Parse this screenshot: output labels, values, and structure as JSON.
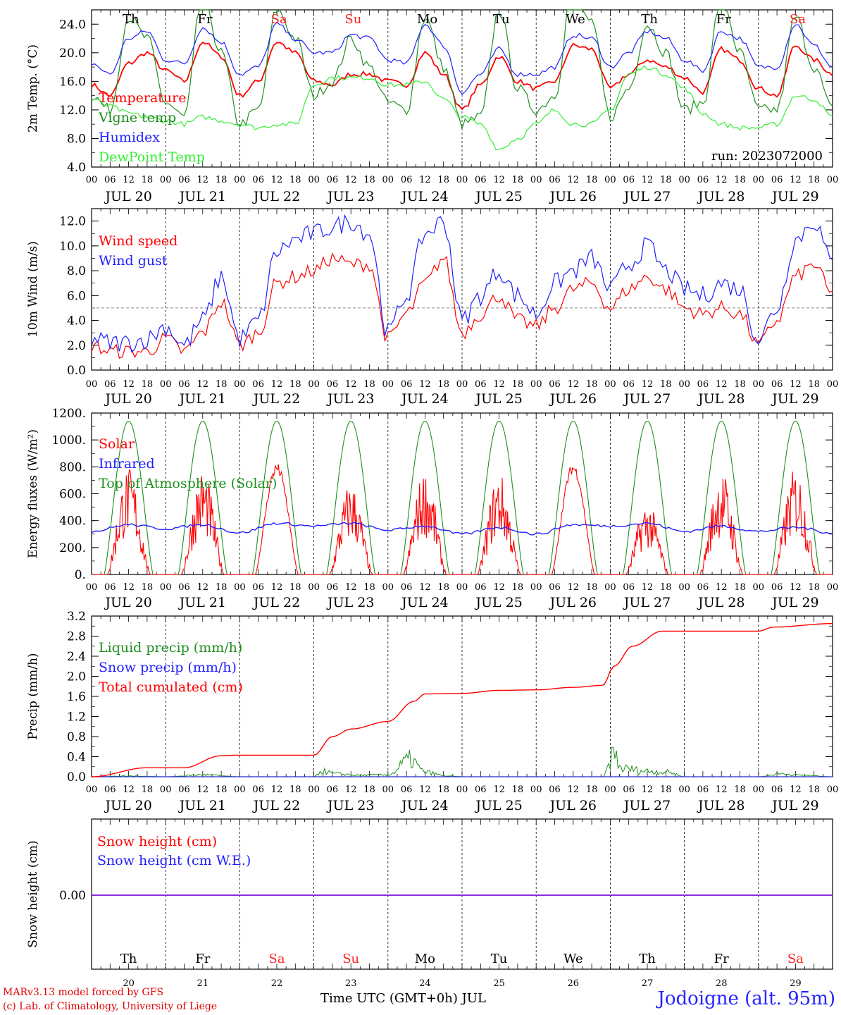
{
  "meteogram": {
    "station": "Jodoigne (alt. 95m)",
    "credit_line1": "MARv3.13 model forced by GFS",
    "credit_line2": "(c) Lab. of Climatology, University of Liege",
    "run_label": "run: 2023072000",
    "x_axis_title": "Time UTC (GMT+0h) JUL",
    "hour_ticks": [
      "00",
      "06",
      "12",
      "18"
    ],
    "day_labels": [
      "JUL 20",
      "JUL 21",
      "JUL 22",
      "JUL 23",
      "JUL 24",
      "JUL 25",
      "JUL 26",
      "JUL 27",
      "JUL 28",
      "JUL 29"
    ],
    "day_numbers": [
      "20",
      "21",
      "22",
      "23",
      "24",
      "25",
      "26",
      "27",
      "28",
      "29"
    ],
    "weekdays": [
      "Th",
      "Fr",
      "Sa",
      "Su",
      "Mo",
      "Tu",
      "We",
      "Th",
      "Fr",
      "Sa"
    ],
    "weekend_flags": [
      false,
      false,
      true,
      true,
      false,
      false,
      false,
      false,
      false,
      true
    ],
    "colors": {
      "red": "#ff0000",
      "dark_green": "#1f8f1f",
      "blue": "#2020ff",
      "light_green": "#33ee33",
      "purple": "#8a2be2",
      "weekend": "#ff2020"
    }
  },
  "chart_data": [
    {
      "type": "line",
      "ylabel": "2m Temp. (°C)",
      "ylim": [
        4,
        26
      ],
      "yticks": [
        "4.0",
        "8.0",
        "12.0",
        "16.0",
        "20.0",
        "24.0"
      ],
      "x_unit": "days since JUL 20 00 UTC",
      "grid": "day separators dashed",
      "series": [
        {
          "name": "Temperature",
          "color": "#ff0000",
          "x": [
            0,
            0.25,
            0.5,
            0.75,
            1,
            1.25,
            1.5,
            1.75,
            2,
            2.25,
            2.5,
            2.75,
            3,
            3.25,
            3.5,
            3.75,
            4,
            4.25,
            4.5,
            4.75,
            5,
            5.25,
            5.5,
            5.75,
            6,
            6.25,
            6.5,
            6.75,
            7,
            7.25,
            7.5,
            7.75,
            8,
            8.25,
            8.5,
            8.75,
            9,
            9.25,
            9.5,
            9.75,
            10
          ],
          "y": [
            15.5,
            14,
            18.5,
            20,
            17.5,
            16,
            21.5,
            19.5,
            14,
            16,
            21.5,
            20,
            16,
            15.5,
            17,
            17,
            16,
            15.5,
            20,
            17,
            12,
            15.5,
            19.5,
            16,
            15,
            16,
            21,
            20.5,
            15,
            17,
            19,
            18,
            16.5,
            14.5,
            20.5,
            19,
            15,
            14,
            21,
            19,
            17
          ]
        },
        {
          "name": "Vigne temp",
          "color": "#1f8f1f",
          "x": [
            0,
            0.25,
            0.5,
            0.75,
            1,
            1.25,
            1.5,
            1.75,
            2,
            2.25,
            2.5,
            2.75,
            3,
            3.25,
            3.5,
            3.75,
            4,
            4.25,
            4.5,
            4.75,
            5,
            5.25,
            5.5,
            5.75,
            6,
            6.25,
            6.5,
            6.75,
            7,
            7.25,
            7.5,
            7.75,
            8,
            8.25,
            8.5,
            8.75,
            9,
            9.25,
            9.5,
            9.75,
            10
          ],
          "y": [
            14,
            12,
            25,
            22,
            13,
            11,
            28,
            20,
            10,
            12,
            26,
            22,
            14,
            16,
            22,
            18,
            13,
            12,
            25,
            18,
            10,
            11,
            26,
            15,
            12,
            14,
            30,
            24,
            11,
            15,
            24,
            20,
            12,
            13,
            28,
            20,
            12,
            12,
            25,
            18,
            12
          ]
        },
        {
          "name": "Humidex",
          "color": "#2020ff",
          "x": [
            0,
            0.25,
            0.5,
            0.75,
            1,
            1.25,
            1.5,
            1.75,
            2,
            2.25,
            2.5,
            2.75,
            3,
            3.25,
            3.5,
            3.75,
            4,
            4.25,
            4.5,
            4.75,
            5,
            5.25,
            5.5,
            5.75,
            6,
            6.25,
            6.5,
            6.75,
            7,
            7.25,
            7.5,
            7.75,
            8,
            8.25,
            8.5,
            8.75,
            9,
            9.25,
            9.5,
            9.75,
            10
          ],
          "y": [
            18.5,
            17,
            22,
            23,
            19,
            18.5,
            23.5,
            21.5,
            17,
            18,
            24,
            22,
            20,
            20,
            22.5,
            22,
            19,
            18.5,
            24,
            21,
            14.5,
            17,
            20.5,
            17,
            17,
            18,
            22.5,
            22,
            18,
            20,
            23,
            22,
            19,
            17.5,
            23,
            22,
            18,
            18,
            24,
            21,
            18
          ]
        },
        {
          "name": "DewPoint Temp",
          "color": "#33ee33",
          "x": [
            0,
            0.25,
            0.5,
            0.75,
            1,
            1.25,
            1.5,
            1.75,
            2,
            2.25,
            2.5,
            2.75,
            3,
            3.25,
            3.5,
            3.75,
            4,
            4.25,
            4.5,
            4.75,
            5,
            5.25,
            5.5,
            5.75,
            6,
            6.25,
            6.5,
            6.75,
            7,
            7.25,
            7.5,
            7.75,
            8,
            8.25,
            8.5,
            8.75,
            9,
            9.25,
            9.5,
            9.75,
            10
          ],
          "y": [
            13.5,
            12.5,
            11.5,
            11,
            10.5,
            10,
            11,
            10.5,
            10,
            9.5,
            10,
            10,
            15.5,
            16.5,
            16.5,
            16.5,
            15.5,
            15.5,
            16,
            13.5,
            11,
            10,
            6.5,
            8,
            10,
            12,
            10,
            10,
            12,
            17,
            18,
            17,
            15,
            11.5,
            10,
            9.5,
            9.5,
            10,
            14,
            13.5,
            11
          ]
        }
      ]
    },
    {
      "type": "line",
      "ylabel": "10m Wind (m/s)",
      "ylim": [
        0,
        13
      ],
      "yticks": [
        "0.0",
        "2.0",
        "4.0",
        "6.0",
        "8.0",
        "10.0",
        "12.0"
      ],
      "reference_line": 5,
      "x_unit": "days since JUL 20 00 UTC",
      "series": [
        {
          "name": "Wind speed",
          "color": "#ff0000",
          "x": [
            0,
            0.25,
            0.5,
            0.75,
            1,
            1.25,
            1.5,
            1.75,
            2,
            2.25,
            2.5,
            2.75,
            3,
            3.25,
            3.5,
            3.75,
            4,
            4.25,
            4.5,
            4.75,
            5,
            5.25,
            5.5,
            5.75,
            6,
            6.25,
            6.5,
            6.75,
            7,
            7.25,
            7.5,
            7.75,
            8,
            8.25,
            8.5,
            8.75,
            9,
            9.25,
            9.5,
            9.75,
            10
          ],
          "y": [
            2,
            1.5,
            1.5,
            1.5,
            2.5,
            1.5,
            3,
            5.5,
            2,
            3,
            7,
            7.5,
            8,
            9,
            8.5,
            8.5,
            2.5,
            4.5,
            7,
            9,
            3,
            4.5,
            6,
            4,
            3.5,
            5,
            6.5,
            7,
            5,
            6.5,
            7.5,
            6.5,
            5,
            4.5,
            5,
            4.5,
            2,
            4,
            7.5,
            8.5,
            6
          ]
        },
        {
          "name": "Wind gust",
          "color": "#2020ff",
          "x": [
            0,
            0.25,
            0.5,
            0.75,
            1,
            1.25,
            1.5,
            1.75,
            2,
            2.25,
            2.5,
            2.75,
            3,
            3.25,
            3.5,
            3.75,
            4,
            4.25,
            4.5,
            4.75,
            5,
            5.25,
            5.5,
            5.75,
            6,
            6.25,
            6.5,
            6.75,
            7,
            7.25,
            7.5,
            7.75,
            8,
            8.25,
            8.5,
            8.75,
            9,
            9.25,
            9.5,
            9.75,
            10
          ],
          "y": [
            2.5,
            2.2,
            2.2,
            2.5,
            3.5,
            2,
            4,
            7.5,
            2.5,
            4,
            9.5,
            10.5,
            11,
            11.5,
            12,
            11,
            3,
            6,
            11,
            12,
            4,
            6,
            8,
            6,
            4.5,
            7,
            8,
            9,
            6.5,
            8.5,
            10,
            8,
            6.5,
            6,
            7,
            6.5,
            2.5,
            5,
            10.5,
            12,
            8.5
          ]
        }
      ]
    },
    {
      "type": "line",
      "ylabel": "Energy fluxes (W/m²)",
      "ylim": [
        0,
        1200
      ],
      "yticks": [
        "0.",
        "200.",
        "400.",
        "600.",
        "800.",
        "1000.",
        "1200."
      ],
      "x_unit": "days since JUL 20 00 UTC",
      "toa_peak": 1140,
      "solar_daily_peaks": [
        800,
        790,
        830,
        690,
        780,
        760,
        830,
        540,
        780,
        800
      ],
      "series": [
        {
          "name": "Solar",
          "color": "#ff0000"
        },
        {
          "name": "Infrared",
          "color": "#2020ff",
          "x": [
            0,
            0.5,
            1,
            1.5,
            2,
            2.5,
            3,
            3.5,
            4,
            4.5,
            5,
            5.5,
            6,
            6.5,
            7,
            7.5,
            8,
            8.5,
            9,
            9.5,
            10
          ],
          "y": [
            320,
            370,
            340,
            370,
            310,
            380,
            360,
            380,
            330,
            360,
            300,
            350,
            300,
            370,
            360,
            380,
            320,
            360,
            320,
            350,
            310
          ]
        },
        {
          "name": "Top of Atmosphere (Solar)",
          "color": "#1f8f1f"
        }
      ]
    },
    {
      "type": "line",
      "ylabel": "Precip (mm/h)",
      "ylim": [
        0,
        3.2
      ],
      "yticks": [
        "0.0",
        "0.4",
        "0.8",
        "1.2",
        "1.6",
        "2.0",
        "2.4",
        "2.8",
        "3.2"
      ],
      "x_unit": "days since JUL 20 00 UTC",
      "series": [
        {
          "name": "Liquid precip (mm/h)",
          "color": "#1f8f1f",
          "x": [
            0,
            0.5,
            1,
            1.5,
            2,
            2.5,
            3,
            3.1,
            3.3,
            3.6,
            4,
            4.3,
            4.5,
            4.8,
            5,
            6,
            6.9,
            7.05,
            7.15,
            7.5,
            7.8,
            8,
            9,
            9.3,
            9.6,
            10
          ],
          "y": [
            0,
            0.02,
            0,
            0.05,
            0,
            0,
            0,
            0.15,
            0.08,
            0.04,
            0.05,
            0.45,
            0.12,
            0.02,
            0,
            0,
            0,
            0.6,
            0.22,
            0.15,
            0.12,
            0,
            0,
            0.08,
            0.04,
            0
          ]
        },
        {
          "name": "Snow precip (mm/h)",
          "color": "#2020ff",
          "x": [
            0,
            10
          ],
          "y": [
            0,
            0
          ]
        },
        {
          "name": "Total cumulated (cm)",
          "color": "#ff0000",
          "x": [
            0,
            0.75,
            1.25,
            1.75,
            2,
            2.5,
            3,
            3.25,
            3.5,
            4,
            4.35,
            4.5,
            5,
            5.5,
            6,
            6.5,
            6.9,
            7.05,
            7.3,
            7.7,
            8,
            9,
            9.2,
            10
          ],
          "y": [
            0,
            0.18,
            0.18,
            0.42,
            0.43,
            0.43,
            0.43,
            0.8,
            0.95,
            1.1,
            1.5,
            1.65,
            1.66,
            1.72,
            1.73,
            1.78,
            1.82,
            2.2,
            2.6,
            2.9,
            2.9,
            2.9,
            2.98,
            3.05
          ]
        }
      ]
    },
    {
      "type": "line",
      "ylabel": "Snow height (cm)",
      "yticks": [
        "0.00"
      ],
      "x_unit": "days since JUL 20 00 UTC",
      "series": [
        {
          "name": "Snow height (cm)",
          "color": "#ff0000",
          "x": [
            0,
            10
          ],
          "y": [
            0,
            0
          ]
        },
        {
          "name": "Snow height (cm W.E.)",
          "color": "#2020ff",
          "x": [
            0,
            10
          ],
          "y": [
            0,
            0
          ]
        }
      ]
    }
  ]
}
